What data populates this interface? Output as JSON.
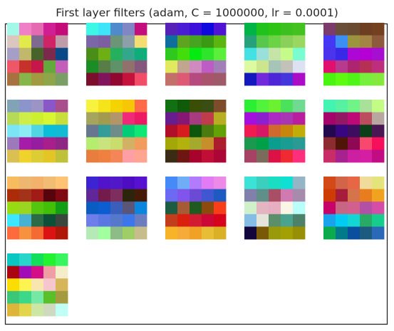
{
  "chart_data": {
    "type": "heatmap",
    "title": "First layer filters (adam, C = 1000000, lr = 0.0001)",
    "grid": false,
    "grid_layout": {
      "columns": 5,
      "rows": 4
    },
    "filter_shape": [
      5,
      5
    ],
    "filters": [
      [
        [
          "#a4f8e8",
          "#f07fc8",
          "#e46bb1",
          "#d01f95",
          "#c40c79"
        ],
        [
          "#dcc6c0",
          "#e2e94a",
          "#7e6a8e",
          "#d12466",
          "#bf9ca7"
        ],
        [
          "#a59ec6",
          "#c1b86b",
          "#466329",
          "#7b2a4e",
          "#084a85"
        ],
        [
          "#ee5767",
          "#c7312c",
          "#c6164a",
          "#63a93c",
          "#c35eb9"
        ],
        [
          "#a6723f",
          "#86b649",
          "#a09b40",
          "#8ea649",
          "#7a9f65"
        ]
      ],
      [
        [
          "#3ef8e6",
          "#3ee4f7",
          "#4f8acd",
          "#8186c4",
          "#c30e7e"
        ],
        [
          "#7b66a7",
          "#7e5ea2",
          "#6c9577",
          "#8d9fa8",
          "#f3dd72"
        ],
        [
          "#4a8e17",
          "#6faf16",
          "#24b05f",
          "#33a78c",
          "#0fad7a"
        ],
        [
          "#1c8c25",
          "#567e46",
          "#60926a",
          "#92716d",
          "#86577c"
        ],
        [
          "#7a0e2c",
          "#81155b",
          "#90082f",
          "#c4123d",
          "#f14d68"
        ]
      ],
      [
        [
          "#5721b8",
          "#4a1dd5",
          "#3c10da",
          "#1009df",
          "#5012d4"
        ],
        [
          "#0e6e9e",
          "#5ea421",
          "#47a421",
          "#3a9a13",
          "#5bb50e"
        ],
        [
          "#2ec81f",
          "#44dd0c",
          "#05ea11",
          "#2fe52b",
          "#5bef3c"
        ],
        [
          "#e1ea5f",
          "#c2a591",
          "#cf8bbf",
          "#bd5cc4",
          "#a27fb6"
        ],
        [
          "#c27069",
          "#dc5a73",
          "#b54a7f",
          "#a9536d",
          "#9e5a69"
        ]
      ],
      [
        [
          "#00b446",
          "#1fc31b",
          "#2ec416",
          "#3cc01f",
          "#42c121"
        ],
        [
          "#27a17a",
          "#58c84d",
          "#6cd347",
          "#8ad05b",
          "#9ad760"
        ],
        [
          "#42e1e3",
          "#98e0d9",
          "#c5e4a8",
          "#c5fb88",
          "#79fcd0"
        ],
        [
          "#dcfba0",
          "#cbe68c",
          "#a7c5b6",
          "#c3c2ba",
          "#dce2f1"
        ],
        [
          "#1419be",
          "#7129db",
          "#4d27d7",
          "#4436db",
          "#ab0cc6"
        ]
      ],
      [
        [
          "#7b3c6b",
          "#694e3a",
          "#6a4a31",
          "#6e3e23",
          "#73411f"
        ],
        [
          "#4438f5",
          "#3e8ff3",
          "#9b953d",
          "#a48443",
          "#8d5a3d"
        ],
        [
          "#4a34ec",
          "#3a28e9",
          "#ad07d5",
          "#b400d4",
          "#a60ed1"
        ],
        [
          "#e1106e",
          "#b73a8d",
          "#ad246f",
          "#b62f55",
          "#bd2f7d"
        ],
        [
          "#49f411",
          "#5dfb0f",
          "#4ff516",
          "#77ef3d",
          "#85e93d"
        ]
      ],
      [
        [
          "#81a3b6",
          "#8c94cc",
          "#9d94c6",
          "#8a56c8",
          "#aa4f8e"
        ],
        [
          "#b7d958",
          "#cdee48",
          "#ccef30",
          "#d7f530",
          "#c8df3b"
        ],
        [
          "#7be4f5",
          "#8becf3",
          "#52d5e3",
          "#0cbdd9",
          "#12bad3"
        ],
        [
          "#9b79bb",
          "#a41ca8",
          "#951d9e",
          "#a81e8a",
          "#8f2585"
        ],
        [
          "#d9c051",
          "#efd22b",
          "#ddcd35",
          "#e3c525",
          "#bfc239"
        ]
      ],
      [
        [
          "#f7f23e",
          "#f5e31c",
          "#f3d402",
          "#f7c604",
          "#ff6b48"
        ],
        [
          "#a5a55e",
          "#a29a4e",
          "#b2966a",
          "#f02a78",
          "#ec1965"
        ],
        [
          "#68778f",
          "#349d9a",
          "#6f8b8a",
          "#00cd75",
          "#0ee676"
        ],
        [
          "#b5ed6f",
          "#c9e47f",
          "#c8dd6e",
          "#d2b164",
          "#f19b5c"
        ],
        [
          "#e77e3f",
          "#ef8040",
          "#f38556",
          "#ff9fa5",
          "#ffa490"
        ]
      ],
      [
        [
          "#117012",
          "#105b0a",
          "#3b4e06",
          "#3a4d14",
          "#7d4c2a"
        ],
        [
          "#681d8f",
          "#861775",
          "#a73b7f",
          "#bf3c4b",
          "#b7ae23"
        ],
        [
          "#b10e2a",
          "#d61c1f",
          "#0f560d",
          "#4a7a10",
          "#63a207"
        ],
        [
          "#a3a808",
          "#b2b10e",
          "#a3aa2e",
          "#c78e2b",
          "#ac1e2d"
        ],
        [
          "#3a2c14",
          "#6e1612",
          "#a8032d",
          "#c10e36",
          "#ac0636"
        ]
      ],
      [
        [
          "#2bef32",
          "#51f43b",
          "#6bf12f",
          "#4be15a",
          "#70d992"
        ],
        [
          "#a40fde",
          "#8c20cf",
          "#ac2cc3",
          "#a936b3",
          "#b81e9d"
        ],
        [
          "#f11a51",
          "#d91767",
          "#d2692c",
          "#c8860c",
          "#c2ac0a"
        ],
        [
          "#1a9a4e",
          "#00a048",
          "#0b9d8d",
          "#199c92",
          "#2a9a95"
        ],
        [
          "#a74265",
          "#7b6b5a",
          "#dc1246",
          "#f12933",
          "#fd2e7c"
        ]
      ],
      [
        [
          "#43f3b2",
          "#56f2a1",
          "#70f487",
          "#a9e19b",
          "#c2fc84"
        ],
        [
          "#a5056b",
          "#921863",
          "#be0a77",
          "#bb4d5f",
          "#b8a79f"
        ],
        [
          "#22094d",
          "#370680",
          "#3f0d5f",
          "#0a3f19",
          "#481754"
        ],
        [
          "#8c2b30",
          "#511507",
          "#8e0853",
          "#f7486d",
          "#f6105c"
        ],
        [
          "#c92d68",
          "#a8228f",
          "#cc1fa2",
          "#d41fa5",
          "#c10c84"
        ]
      ],
      [
        [
          "#f7bc60",
          "#eeb771",
          "#f2b26c",
          "#f1bc73",
          "#ffc373"
        ],
        [
          "#ac2c0a",
          "#a2321a",
          "#a11c16",
          "#58040c",
          "#800813"
        ],
        [
          "#98db13",
          "#9ad520",
          "#54c610",
          "#42c008",
          "#109f15"
        ],
        [
          "#3ce7ff",
          "#47b1d4",
          "#2b6b47",
          "#0d4f37",
          "#3a473c"
        ],
        [
          "#fe6a3c",
          "#f7903f",
          "#f46a32",
          "#db1413",
          "#af1709"
        ]
      ],
      [
        [
          "#3d24d3",
          "#5214cb",
          "#5018c8",
          "#4d0dc2",
          "#5712d1"
        ],
        [
          "#612697",
          "#731c4c",
          "#7d2e5d",
          "#2d240c",
          "#451a07"
        ],
        [
          "#0a5dc0",
          "#0c5dcf",
          "#395ebc",
          "#5a5679",
          "#0a86df"
        ],
        [
          "#6d7eeb",
          "#5b78e2",
          "#5578cc",
          "#3b76ea",
          "#6c7dbf"
        ],
        [
          "#b5eab6",
          "#a1ffa0",
          "#8ebc86",
          "#9fcd66",
          "#c7bd8c"
        ]
      ],
      [
        [
          "#468af8",
          "#6faef7",
          "#b17bfc",
          "#e37cf4",
          "#ed8ae8"
        ],
        [
          "#6c69f2",
          "#8154ec",
          "#6b4bd6",
          "#3f57d0",
          "#1e5bc0"
        ],
        [
          "#1b5c42",
          "#a45b36",
          "#215a1f",
          "#8c4a0f",
          "#f73e19"
        ],
        [
          "#c23d1b",
          "#db1f0e",
          "#d21b33",
          "#cc0837",
          "#d5031c"
        ],
        [
          "#f7b429",
          "#f6aa37",
          "#f1a126",
          "#e6bd34",
          "#dab027"
        ]
      ],
      [
        [
          "#3be3d6",
          "#3bcfbd",
          "#19dec2",
          "#0ee1d4",
          "#95b4c5"
        ],
        [
          "#8180aa",
          "#5e9089",
          "#a84f66",
          "#d07ab1",
          "#a78bad"
        ],
        [
          "#cff0c8",
          "#e2b5c1",
          "#e7adc0",
          "#fbf5e5",
          "#b7fff7"
        ],
        [
          "#86bde6",
          "#e4e4da",
          "#5b8f6b",
          "#4aa38e",
          "#4d8169"
        ],
        [
          "#13063b",
          "#7a5906",
          "#999a0b",
          "#a3a005",
          "#988f08"
        ]
      ],
      [
        [
          "#d34917",
          "#d26447",
          "#e76645",
          "#f1db9b",
          "#e3e47b"
        ],
        [
          "#cd3d03",
          "#a51d3a",
          "#d5744b",
          "#e87d1e",
          "#f1a31f"
        ],
        [
          "#c70268",
          "#c76682",
          "#d1608e",
          "#b250a6",
          "#d44ea7"
        ],
        [
          "#19a3ec",
          "#01cbf3",
          "#13d6d2",
          "#28ab65",
          "#16cd8e"
        ],
        [
          "#0aaa4d",
          "#037a89",
          "#0a4f9d",
          "#1c5a7f",
          "#2969b8"
        ]
      ],
      [
        [
          "#0bc7c1",
          "#27d6c9",
          "#11df5c",
          "#23f231",
          "#36f55f"
        ],
        [
          "#aa0510",
          "#a10bb8",
          "#d40e89",
          "#ef9fa4",
          "#f4edca"
        ],
        [
          "#fbdd01",
          "#fdf452",
          "#f9e6af",
          "#f5c7cc",
          "#d7b65b"
        ],
        [
          "#3ac878",
          "#3bd889",
          "#74e8a4",
          "#59c02a",
          "#a49a3f"
        ],
        [
          "#dcb53a",
          "#e3d54b",
          "#cde6a4",
          "#cfd9bf",
          "#c0fff5"
        ]
      ]
    ]
  }
}
